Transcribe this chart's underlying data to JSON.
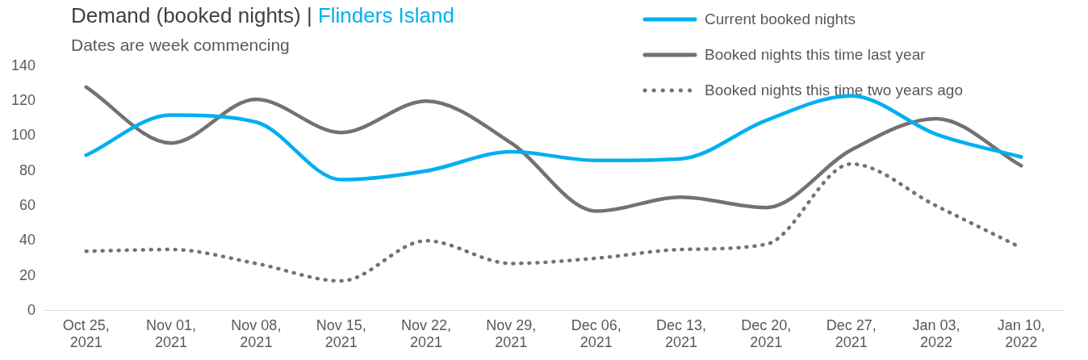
{
  "chart_data": {
    "type": "line",
    "title": "Demand (booked nights) | Flinders Island",
    "subtitle": "Dates are week commencing",
    "categories": [
      "Oct 25, 2021",
      "Nov 01, 2021",
      "Nov 08, 2021",
      "Nov 15, 2021",
      "Nov 22, 2021",
      "Nov 29, 2021",
      "Dec 06, 2021",
      "Dec 13, 2021",
      "Dec 20, 2021",
      "Dec 27, 2021",
      "Jan 03, 2022",
      "Jan 10, 2022"
    ],
    "series": [
      {
        "name": "Current booked nights",
        "color": "#00b0f0",
        "line_style": "solid",
        "values": [
          89,
          112,
          108,
          75,
          80,
          91,
          86,
          87,
          109,
          123,
          101,
          88
        ]
      },
      {
        "name": "Booked nights this time last year",
        "color": "#767171",
        "line_style": "solid",
        "values": [
          128,
          96,
          121,
          102,
          120,
          96,
          57,
          65,
          59,
          92,
          110,
          83
        ]
      },
      {
        "name": "Booked nights this time two years ago",
        "color": "#767171",
        "line_style": "dotted",
        "values": [
          34,
          35,
          27,
          17,
          40,
          27,
          30,
          35,
          38,
          84,
          60,
          36
        ]
      }
    ],
    "ylim": [
      0,
      140
    ],
    "yticks": [
      0,
      20,
      40,
      60,
      80,
      100,
      120,
      140
    ],
    "grid": false,
    "legend": "top right",
    "marker": "none"
  }
}
